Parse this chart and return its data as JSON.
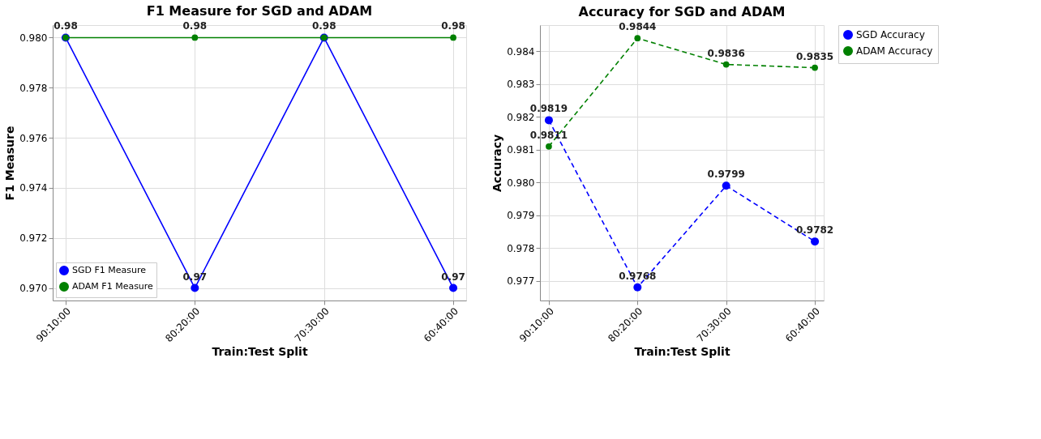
{
  "chart_data": [
    {
      "type": "line",
      "title": "F1 Measure for SGD and ADAM",
      "xlabel": "Train:Test Split",
      "ylabel": "F1 Measure",
      "categories": [
        "90:10:00",
        "80:20:00",
        "70:30:00",
        "60:40:00"
      ],
      "series": [
        {
          "name": "SGD F1 Measure",
          "color": "#0000ff",
          "values": [
            0.98,
            0.97,
            0.98,
            0.97
          ],
          "value_labels": [
            null,
            "0.97",
            null,
            "0.97"
          ]
        },
        {
          "name": "ADAM F1 Measure",
          "color": "#008000",
          "values": [
            0.98,
            0.98,
            0.98,
            0.98
          ],
          "value_labels": [
            "0.98",
            "0.98",
            "0.98",
            "0.98"
          ]
        }
      ],
      "ylim": [
        0.9695,
        0.9805
      ],
      "yticks": [
        {
          "value": 0.97,
          "label": "0.970"
        },
        {
          "value": 0.972,
          "label": "0.972"
        },
        {
          "value": 0.974,
          "label": "0.974"
        },
        {
          "value": 0.976,
          "label": "0.976"
        },
        {
          "value": 0.978,
          "label": "0.978"
        },
        {
          "value": 0.98,
          "label": "0.980"
        }
      ],
      "grid": true,
      "legend": "bottom left",
      "marker": "circle",
      "line_style": "solid"
    },
    {
      "type": "line",
      "title": "Accuracy for SGD and ADAM",
      "xlabel": "Train:Test Split",
      "ylabel": "Accuracy",
      "categories": [
        "90:10:00",
        "80:20:00",
        "70:30:00",
        "60:40:00"
      ],
      "series": [
        {
          "name": "SGD Accuracy",
          "color": "#0000ff",
          "values": [
            0.9819,
            0.9768,
            0.9799,
            0.9782
          ]
        },
        {
          "name": "ADAM Accuracy",
          "color": "#008000",
          "values": [
            0.9811,
            0.9844,
            0.9836,
            0.9835
          ]
        }
      ],
      "ylim": [
        0.9764,
        0.9848
      ],
      "yticks": [
        {
          "value": 0.977,
          "label": "0.977"
        },
        {
          "value": 0.978,
          "label": "0.978"
        },
        {
          "value": 0.979,
          "label": "0.979"
        },
        {
          "value": 0.98,
          "label": "0.980"
        },
        {
          "value": 0.981,
          "label": "0.981"
        },
        {
          "value": 0.982,
          "label": "0.982"
        },
        {
          "value": 0.983,
          "label": "0.983"
        },
        {
          "value": 0.984,
          "label": "0.984"
        }
      ],
      "grid": true,
      "legend": "top right",
      "marker": "circle",
      "line_style": "dashed",
      "data_labels": true
    }
  ]
}
